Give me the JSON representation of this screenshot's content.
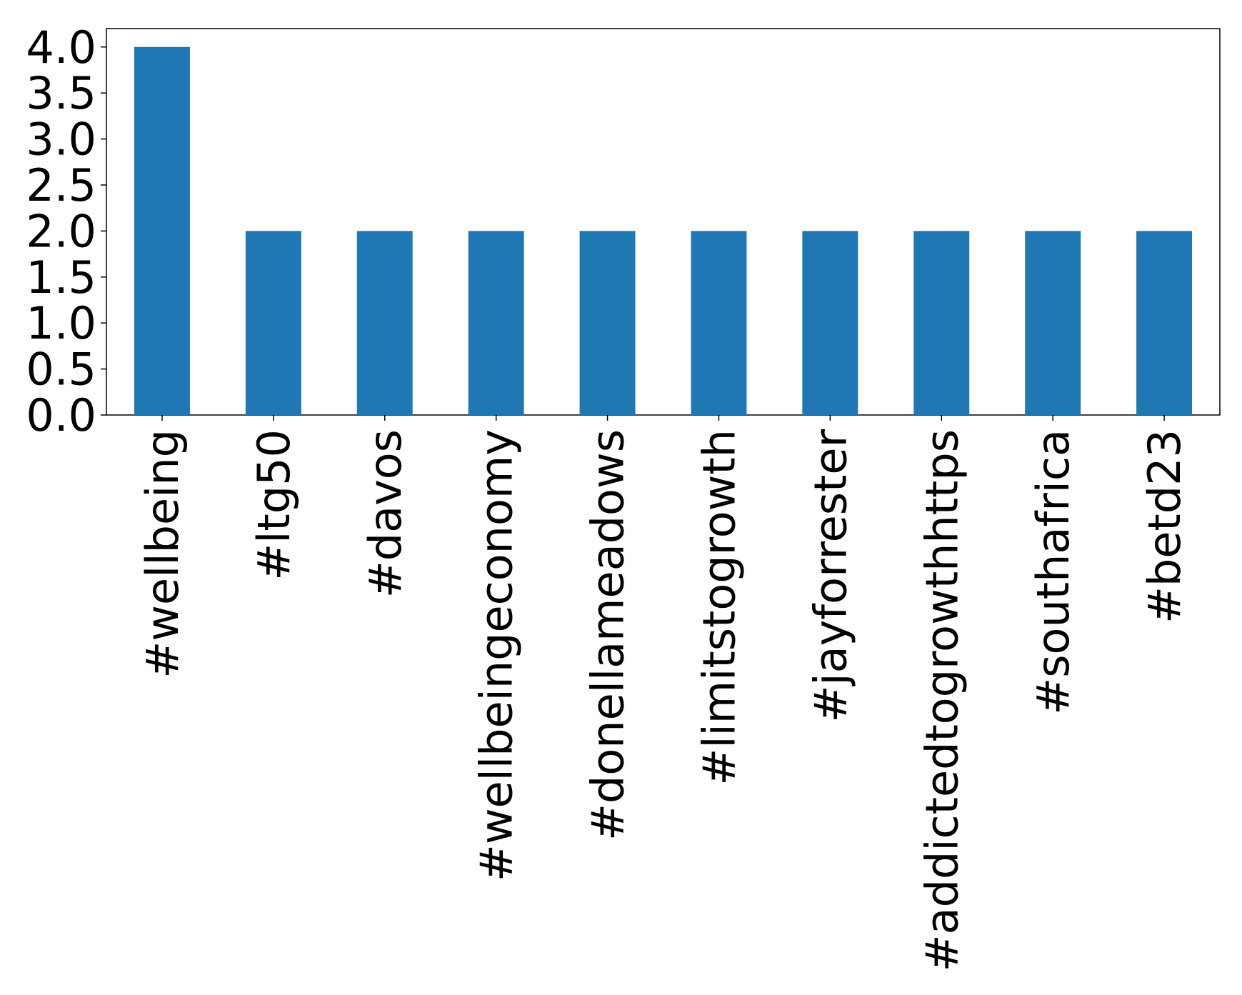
{
  "chart_data": {
    "type": "bar",
    "categories": [
      "#wellbeing",
      "#ltg50",
      "#davos",
      "#wellbeingeconomy",
      "#donellameadows",
      "#limitstogrowth",
      "#jayforrester",
      "#addictedtogrowthhttps",
      "#southafrica",
      "#betd23"
    ],
    "values": [
      4,
      2,
      2,
      2,
      2,
      2,
      2,
      2,
      2,
      2
    ],
    "color": "#1f77b4",
    "ylim": [
      0,
      4.2
    ],
    "yticks": [
      {
        "value": 0,
        "label": "0.0"
      },
      {
        "value": 0.5,
        "label": "0.5"
      },
      {
        "value": 1,
        "label": "1.0"
      },
      {
        "value": 1.5,
        "label": "1.5"
      },
      {
        "value": 2,
        "label": "2.0"
      },
      {
        "value": 2.5,
        "label": "2.5"
      },
      {
        "value": 3,
        "label": "3.0"
      },
      {
        "value": 3.5,
        "label": "3.5"
      },
      {
        "value": 4,
        "label": "4.0"
      }
    ],
    "grid": false
  }
}
